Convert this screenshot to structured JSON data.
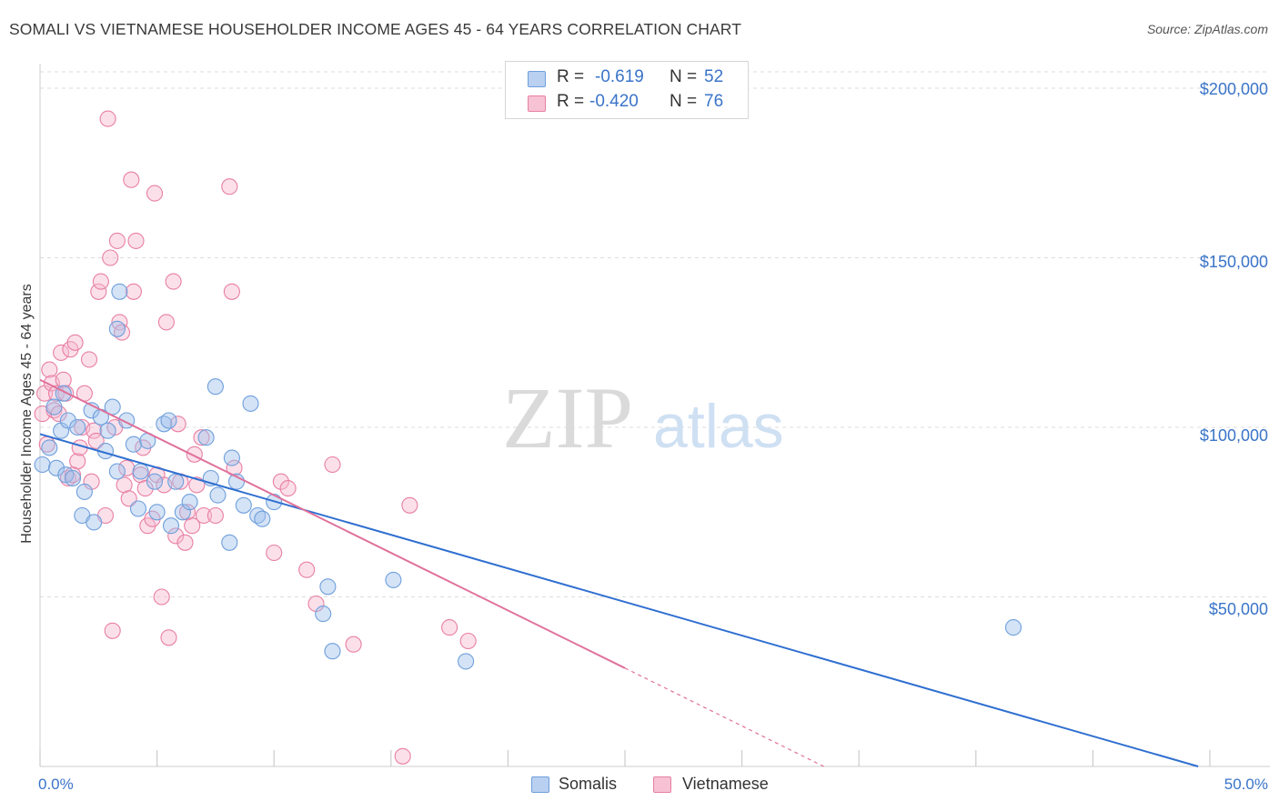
{
  "title": "SOMALI VS VIETNAMESE HOUSEHOLDER INCOME AGES 45 - 64 YEARS CORRELATION CHART",
  "source": "Source: ZipAtlas.com",
  "watermark": {
    "zip": "ZIP",
    "atlas": "atlas"
  },
  "stats": [
    {
      "name": "Somalis",
      "r_label": "R =",
      "r_value": "-0.619",
      "n_label": "N =",
      "n_value": "52",
      "color": "#6f9fdc",
      "fill": "#b9d0f1"
    },
    {
      "name": "Vietnamese",
      "r_label": "R =",
      "r_value": "-0.420",
      "n_label": "N =",
      "n_value": "76",
      "color": "#e87fa3",
      "fill": "#f6c2d4"
    }
  ],
  "legend": {
    "somalis": "Somalis",
    "vietnamese": "Vietnamese"
  },
  "colors": {
    "blue_line": "#2f6fd0",
    "pink_line": "#e0709a",
    "tick_text": "#3a74c8",
    "grid": "#dddddd"
  },
  "chart_data": {
    "type": "scatter",
    "title": "SOMALI VS VIETNAMESE HOUSEHOLDER INCOME AGES 45 - 64 YEARS CORRELATION CHART",
    "xlabel": "",
    "ylabel": "Householder Income Ages 45 - 64 years",
    "xlim": [
      0,
      50
    ],
    "ylim": [
      0,
      210000
    ],
    "x_tick_labels": [
      "0.0%",
      "50.0%"
    ],
    "y_ticks": [
      50000,
      100000,
      150000,
      200000
    ],
    "y_tick_labels": [
      "$50,000",
      "$100,000",
      "$150,000",
      "$200,000"
    ],
    "grid": true,
    "series": [
      {
        "name": "Somalis",
        "points": [
          [
            0.1,
            89000
          ],
          [
            0.4,
            94000
          ],
          [
            0.6,
            106000
          ],
          [
            0.7,
            88000
          ],
          [
            0.9,
            99000
          ],
          [
            1.0,
            110000
          ],
          [
            1.1,
            86000
          ],
          [
            1.2,
            102000
          ],
          [
            1.4,
            85000
          ],
          [
            1.8,
            74000
          ],
          [
            1.9,
            81000
          ],
          [
            2.2,
            105000
          ],
          [
            2.3,
            72000
          ],
          [
            2.6,
            103000
          ],
          [
            2.8,
            93000
          ],
          [
            3.1,
            106000
          ],
          [
            3.3,
            87000
          ],
          [
            3.4,
            140000
          ],
          [
            3.3,
            129000
          ],
          [
            3.7,
            102000
          ],
          [
            4.0,
            95000
          ],
          [
            4.2,
            76000
          ],
          [
            4.3,
            87000
          ],
          [
            4.6,
            96000
          ],
          [
            4.9,
            84000
          ],
          [
            5.0,
            75000
          ],
          [
            5.3,
            101000
          ],
          [
            5.5,
            102000
          ],
          [
            5.6,
            71000
          ],
          [
            5.8,
            84000
          ],
          [
            6.1,
            75000
          ],
          [
            6.4,
            78000
          ],
          [
            7.1,
            97000
          ],
          [
            7.3,
            85000
          ],
          [
            7.5,
            112000
          ],
          [
            7.6,
            80000
          ],
          [
            8.1,
            66000
          ],
          [
            8.2,
            91000
          ],
          [
            8.4,
            84000
          ],
          [
            8.7,
            77000
          ],
          [
            9.0,
            107000
          ],
          [
            9.3,
            74000
          ],
          [
            9.5,
            73000
          ],
          [
            10.0,
            78000
          ],
          [
            12.3,
            53000
          ],
          [
            12.1,
            45000
          ],
          [
            12.5,
            34000
          ],
          [
            15.1,
            55000
          ],
          [
            18.2,
            31000
          ],
          [
            41.6,
            41000
          ],
          [
            1.6,
            100000
          ],
          [
            2.9,
            99000
          ]
        ],
        "trend": {
          "x": [
            0,
            49.5
          ],
          "y": [
            98000,
            0
          ]
        }
      },
      {
        "name": "Vietnamese",
        "points": [
          [
            0.1,
            104000
          ],
          [
            0.2,
            110000
          ],
          [
            0.3,
            95000
          ],
          [
            0.4,
            117000
          ],
          [
            0.5,
            113000
          ],
          [
            0.6,
            105000
          ],
          [
            0.7,
            110000
          ],
          [
            0.8,
            104000
          ],
          [
            0.9,
            122000
          ],
          [
            1.0,
            114000
          ],
          [
            1.1,
            110000
          ],
          [
            1.2,
            85000
          ],
          [
            1.3,
            123000
          ],
          [
            1.5,
            125000
          ],
          [
            1.6,
            90000
          ],
          [
            1.7,
            94000
          ],
          [
            1.8,
            100000
          ],
          [
            1.9,
            110000
          ],
          [
            2.1,
            120000
          ],
          [
            2.2,
            84000
          ],
          [
            2.3,
            99000
          ],
          [
            2.5,
            140000
          ],
          [
            2.6,
            143000
          ],
          [
            2.8,
            74000
          ],
          [
            2.9,
            191000
          ],
          [
            3.0,
            150000
          ],
          [
            3.1,
            40000
          ],
          [
            3.2,
            100000
          ],
          [
            3.3,
            155000
          ],
          [
            3.4,
            131000
          ],
          [
            3.5,
            128000
          ],
          [
            3.6,
            83000
          ],
          [
            3.7,
            88000
          ],
          [
            3.8,
            79000
          ],
          [
            3.9,
            173000
          ],
          [
            4.0,
            140000
          ],
          [
            4.1,
            155000
          ],
          [
            4.3,
            86000
          ],
          [
            4.4,
            94000
          ],
          [
            4.6,
            71000
          ],
          [
            4.8,
            73000
          ],
          [
            4.9,
            169000
          ],
          [
            5.0,
            86000
          ],
          [
            5.2,
            50000
          ],
          [
            5.3,
            83000
          ],
          [
            5.4,
            131000
          ],
          [
            5.5,
            38000
          ],
          [
            5.7,
            143000
          ],
          [
            5.8,
            68000
          ],
          [
            6.0,
            84000
          ],
          [
            6.2,
            66000
          ],
          [
            6.3,
            75000
          ],
          [
            6.5,
            71000
          ],
          [
            6.6,
            92000
          ],
          [
            6.9,
            97000
          ],
          [
            7.0,
            74000
          ],
          [
            8.1,
            171000
          ],
          [
            8.2,
            140000
          ],
          [
            8.3,
            88000
          ],
          [
            10.0,
            63000
          ],
          [
            10.3,
            84000
          ],
          [
            10.6,
            82000
          ],
          [
            11.4,
            58000
          ],
          [
            11.8,
            48000
          ],
          [
            12.5,
            89000
          ],
          [
            13.4,
            36000
          ],
          [
            15.8,
            77000
          ],
          [
            17.5,
            41000
          ],
          [
            18.3,
            37000
          ],
          [
            7.5,
            74000
          ],
          [
            2.4,
            96000
          ],
          [
            1.4,
            86000
          ],
          [
            6.7,
            83000
          ],
          [
            5.9,
            101000
          ],
          [
            4.5,
            82000
          ],
          [
            15.5,
            3000
          ]
        ],
        "trend": {
          "x": [
            0,
            25
          ],
          "y": [
            114000,
            29000
          ]
        },
        "trend_extension": {
          "x": [
            25,
            33.5
          ],
          "y": [
            29000,
            0
          ]
        }
      }
    ]
  }
}
